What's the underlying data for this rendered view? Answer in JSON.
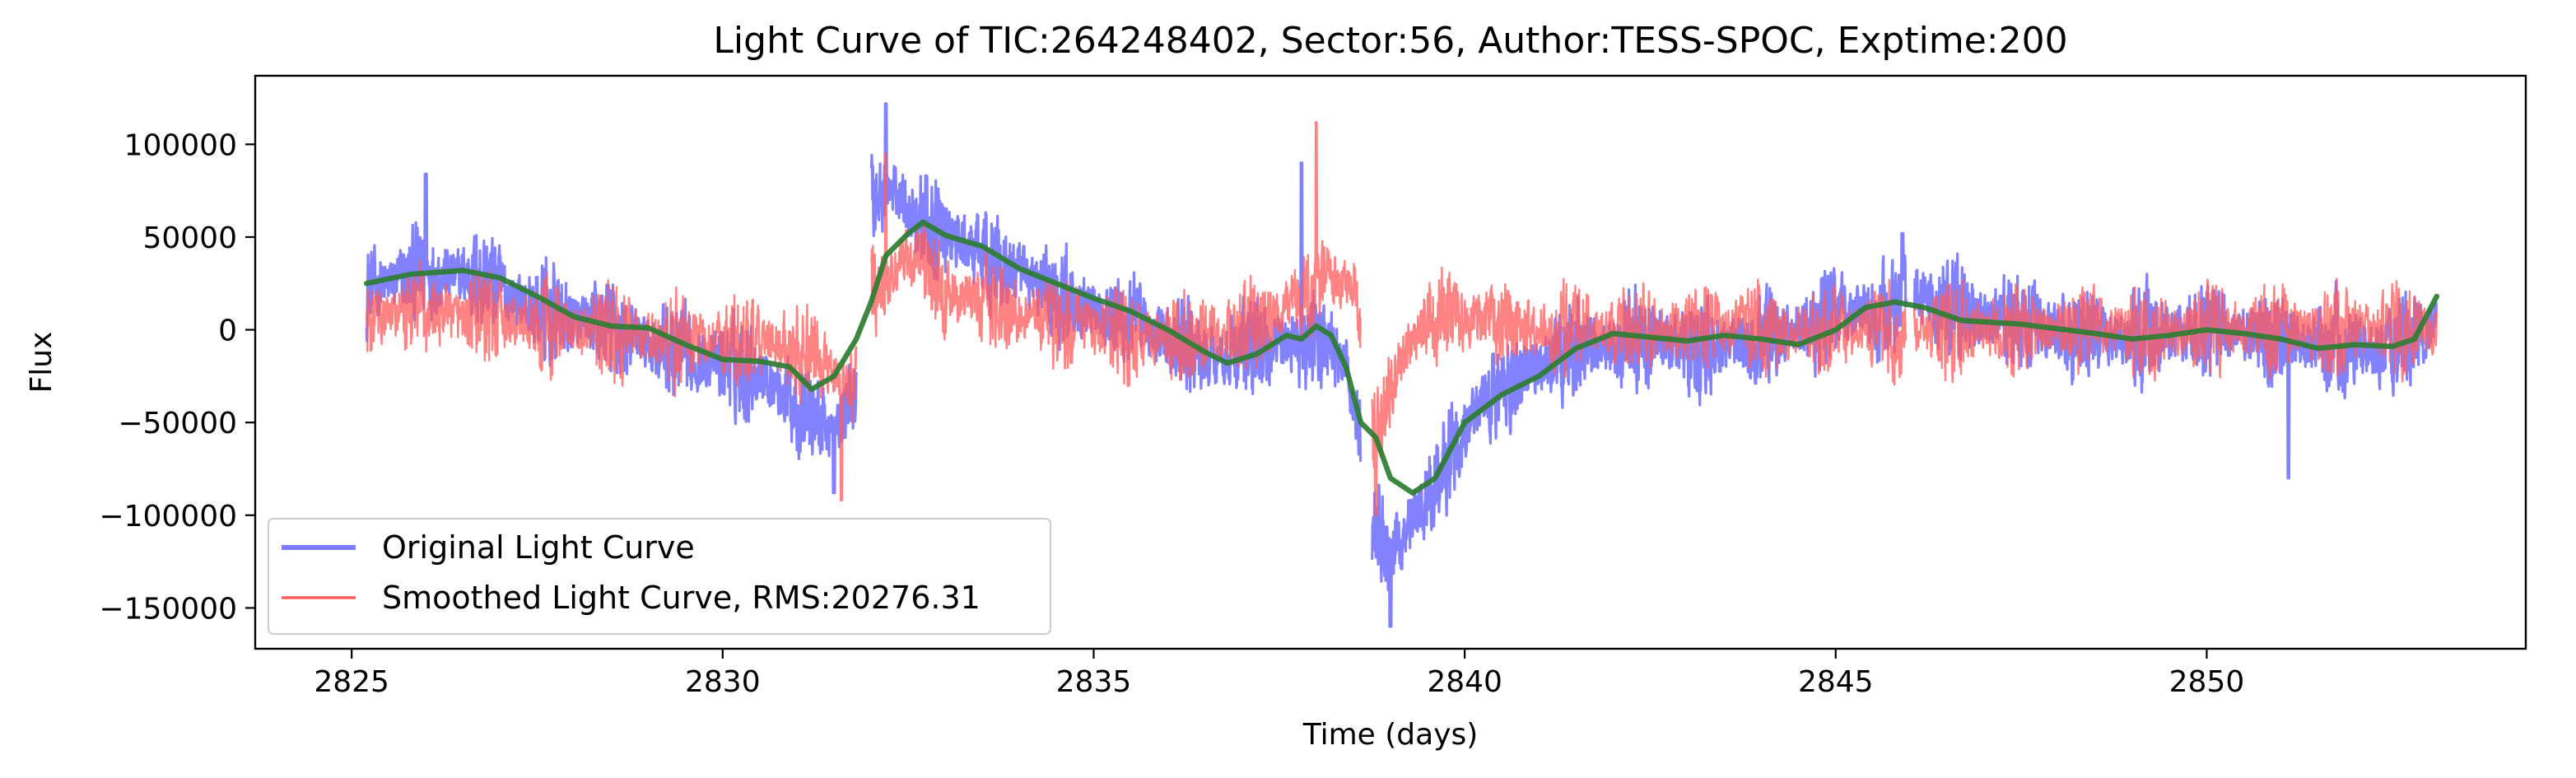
{
  "chart_data": {
    "type": "line",
    "title": "Light Curve of TIC:264248402, Sector:56, Author:TESS-SPOC, Exptime:200",
    "xlabel": "Time (days)",
    "ylabel": "Flux",
    "xlim": [
      2823.7,
      2854.3
    ],
    "ylim": [
      -172000,
      137000
    ],
    "xticks": [
      2825,
      2830,
      2835,
      2840,
      2845,
      2850
    ],
    "yticks": [
      -150000,
      -100000,
      -50000,
      0,
      50000,
      100000
    ],
    "xtick_labels": [
      "2825",
      "2830",
      "2835",
      "2840",
      "2845",
      "2850"
    ],
    "ytick_labels": [
      "−150000",
      "−100000",
      "−50000",
      "0",
      "50000",
      "100000"
    ],
    "grid": false,
    "legend_position": "lower-left",
    "data_gaps": [
      [
        2831.8,
        2832.0
      ],
      [
        2838.6,
        2838.75
      ],
      [
        2845.95,
        2846.05
      ]
    ],
    "series": [
      {
        "name": "Original Light Curve",
        "color": "#7b7bff",
        "style": "noisy",
        "baseline": [
          [
            2825.2,
            22000
          ],
          [
            2826.0,
            30000
          ],
          [
            2826.8,
            28000
          ],
          [
            2827.5,
            10000
          ],
          [
            2828.5,
            0
          ],
          [
            2829.5,
            -15000
          ],
          [
            2830.5,
            -22000
          ],
          [
            2831.0,
            -40000
          ],
          [
            2831.5,
            -55000
          ],
          [
            2831.8,
            -30000
          ],
          [
            2832.0,
            70000
          ],
          [
            2832.3,
            75000
          ],
          [
            2832.8,
            55000
          ],
          [
            2833.5,
            40000
          ],
          [
            2834.5,
            20000
          ],
          [
            2835.5,
            5000
          ],
          [
            2836.5,
            -15000
          ],
          [
            2837.5,
            -8000
          ],
          [
            2838.0,
            -5000
          ],
          [
            2838.4,
            -20000
          ],
          [
            2838.6,
            -60000
          ],
          [
            2838.75,
            -100000
          ],
          [
            2839.0,
            -120000
          ],
          [
            2839.5,
            -90000
          ],
          [
            2840.0,
            -50000
          ],
          [
            2840.5,
            -30000
          ],
          [
            2841.5,
            -10000
          ],
          [
            2842.5,
            -5000
          ],
          [
            2843.5,
            -10000
          ],
          [
            2844.5,
            0
          ],
          [
            2845.0,
            10000
          ],
          [
            2845.8,
            8000
          ],
          [
            2846.0,
            20000
          ],
          [
            2847.0,
            5000
          ],
          [
            2848.0,
            0
          ],
          [
            2849.0,
            -5000
          ],
          [
            2850.0,
            0
          ],
          [
            2851.0,
            -5000
          ],
          [
            2852.0,
            -10000
          ],
          [
            2852.6,
            -10000
          ],
          [
            2853.1,
            5000
          ]
        ],
        "amplitude": 28000,
        "peaks": [
          [
            2832.2,
            122000
          ],
          [
            2839.0,
            -160000
          ],
          [
            2831.5,
            -88000
          ],
          [
            2845.9,
            52000
          ],
          [
            2826.0,
            84000
          ],
          [
            2851.1,
            -80000
          ],
          [
            2837.8,
            90000
          ]
        ]
      },
      {
        "name": "Smoothed Light Curve, RMS:20276.31",
        "color": "#ff5a5a",
        "style": "noisy",
        "baseline": [
          [
            2825.2,
            5000
          ],
          [
            2826.0,
            10000
          ],
          [
            2827.0,
            5000
          ],
          [
            2828.0,
            0
          ],
          [
            2829.0,
            -5000
          ],
          [
            2830.0,
            -5000
          ],
          [
            2831.0,
            -10000
          ],
          [
            2831.8,
            -30000
          ],
          [
            2832.0,
            20000
          ],
          [
            2832.5,
            40000
          ],
          [
            2833.0,
            20000
          ],
          [
            2834.0,
            10000
          ],
          [
            2835.0,
            0
          ],
          [
            2836.0,
            -5000
          ],
          [
            2837.0,
            0
          ],
          [
            2838.0,
            20000
          ],
          [
            2838.5,
            30000
          ],
          [
            2838.6,
            0
          ],
          [
            2838.75,
            -60000
          ],
          [
            2839.0,
            -30000
          ],
          [
            2839.5,
            10000
          ],
          [
            2840.0,
            5000
          ],
          [
            2841.0,
            0
          ],
          [
            2842.0,
            0
          ],
          [
            2843.0,
            0
          ],
          [
            2844.0,
            0
          ],
          [
            2845.0,
            0
          ],
          [
            2846.0,
            0
          ],
          [
            2847.0,
            0
          ],
          [
            2848.0,
            0
          ],
          [
            2849.0,
            0
          ],
          [
            2850.0,
            0
          ],
          [
            2851.0,
            0
          ],
          [
            2852.0,
            0
          ],
          [
            2853.1,
            0
          ]
        ],
        "amplitude": 26000,
        "peaks": [
          [
            2838.0,
            112000
          ],
          [
            2832.2,
            95000
          ],
          [
            2838.8,
            -100000
          ],
          [
            2831.6,
            -92000
          ]
        ]
      },
      {
        "name": "",
        "color": "#2e7d32",
        "style": "smooth",
        "points": [
          [
            2825.2,
            25000
          ],
          [
            2825.8,
            30000
          ],
          [
            2826.5,
            32000
          ],
          [
            2827.0,
            28000
          ],
          [
            2827.5,
            18000
          ],
          [
            2828.0,
            7000
          ],
          [
            2828.5,
            2000
          ],
          [
            2829.0,
            1000
          ],
          [
            2829.5,
            -8000
          ],
          [
            2830.0,
            -16000
          ],
          [
            2830.5,
            -17000
          ],
          [
            2830.9,
            -20000
          ],
          [
            2831.2,
            -32000
          ],
          [
            2831.5,
            -25000
          ],
          [
            2831.8,
            -5000
          ],
          [
            2832.0,
            15000
          ],
          [
            2832.2,
            40000
          ],
          [
            2832.5,
            52000
          ],
          [
            2832.7,
            58000
          ],
          [
            2833.0,
            51000
          ],
          [
            2833.5,
            45000
          ],
          [
            2834.0,
            33000
          ],
          [
            2834.5,
            25000
          ],
          [
            2835.0,
            17000
          ],
          [
            2835.5,
            10000
          ],
          [
            2836.0,
            0
          ],
          [
            2836.5,
            -12000
          ],
          [
            2836.8,
            -18000
          ],
          [
            2837.2,
            -13000
          ],
          [
            2837.6,
            -3000
          ],
          [
            2837.8,
            -5000
          ],
          [
            2838.0,
            2000
          ],
          [
            2838.2,
            -3000
          ],
          [
            2838.4,
            -20000
          ],
          [
            2838.6,
            -50000
          ],
          [
            2838.8,
            -58000
          ],
          [
            2839.0,
            -80000
          ],
          [
            2839.3,
            -88000
          ],
          [
            2839.6,
            -80000
          ],
          [
            2840.0,
            -50000
          ],
          [
            2840.5,
            -35000
          ],
          [
            2841.0,
            -25000
          ],
          [
            2841.5,
            -10000
          ],
          [
            2842.0,
            -2000
          ],
          [
            2842.5,
            -4000
          ],
          [
            2843.0,
            -6000
          ],
          [
            2843.5,
            -3000
          ],
          [
            2844.0,
            -5000
          ],
          [
            2844.5,
            -8000
          ],
          [
            2845.0,
            0
          ],
          [
            2845.4,
            12000
          ],
          [
            2845.8,
            15000
          ],
          [
            2846.2,
            12000
          ],
          [
            2846.7,
            5000
          ],
          [
            2847.5,
            3000
          ],
          [
            2848.5,
            -2000
          ],
          [
            2849.0,
            -5000
          ],
          [
            2849.5,
            -3000
          ],
          [
            2850.0,
            0
          ],
          [
            2850.5,
            -2000
          ],
          [
            2851.0,
            -5000
          ],
          [
            2851.5,
            -10000
          ],
          [
            2852.0,
            -8000
          ],
          [
            2852.5,
            -9000
          ],
          [
            2852.8,
            -5000
          ],
          [
            2853.1,
            18000
          ]
        ]
      }
    ]
  }
}
